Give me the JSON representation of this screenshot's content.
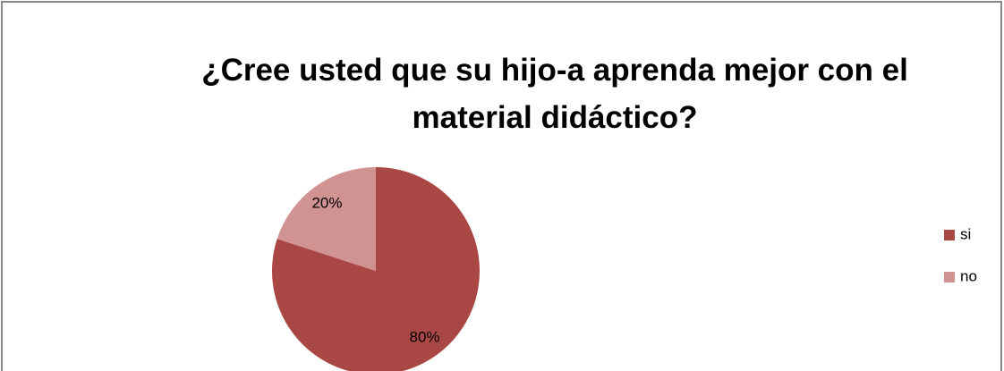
{
  "chart_data": {
    "type": "pie",
    "title": "¿Cree usted que su hijo-a aprenda mejor con el material didáctico?",
    "categories": [
      "si",
      "no"
    ],
    "values": [
      80,
      20
    ],
    "value_labels": [
      "80%",
      "20%"
    ],
    "colors": [
      "#a94744",
      "#d09391"
    ],
    "legend": "right"
  }
}
